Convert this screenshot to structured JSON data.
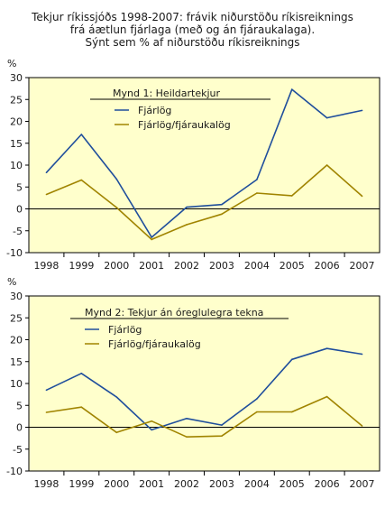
{
  "header": {
    "line1": "Tekjur ríkissjóðs 1998-2007: frávik niðurstöðu ríkisreiknings",
    "line2": "frá áætlun fjárlaga (með og án fjáraukalaga).",
    "line3": "Sýnt sem % af niðurstöðu ríkisreiknings"
  },
  "colors": {
    "plot_bg": "#ffffcc",
    "series1": "#1f4e9c",
    "series2": "#a08400",
    "axis": "#000000"
  },
  "chart_data": [
    {
      "type": "line",
      "title": "Mynd 1: Heildartekjur",
      "ylabel": "%",
      "ylim": [
        -10,
        30
      ],
      "yticks": [
        -10,
        -5,
        0,
        5,
        10,
        15,
        20,
        25,
        30
      ],
      "categories": [
        "1998",
        "1999",
        "2000",
        "2001",
        "2002",
        "2003",
        "2004",
        "2005",
        "2006",
        "2007"
      ],
      "series": [
        {
          "name": "Fjárlög",
          "values": [
            8.3,
            17.0,
            6.8,
            -6.5,
            0.4,
            1.0,
            6.7,
            27.3,
            20.8,
            22.5
          ]
        },
        {
          "name": "Fjárlög/fjáraukalög",
          "values": [
            3.3,
            6.6,
            0.3,
            -7.0,
            -3.6,
            -1.2,
            3.6,
            3.0,
            10.0,
            2.9
          ]
        }
      ],
      "legend": "top-center",
      "grid": false
    },
    {
      "type": "line",
      "title": "Mynd 2: Tekjur án óreglulegra tekna",
      "ylabel": "%",
      "ylim": [
        -10,
        30
      ],
      "yticks": [
        -10,
        -5,
        0,
        5,
        10,
        15,
        20,
        25,
        30
      ],
      "categories": [
        "1998",
        "1999",
        "2000",
        "2001",
        "2002",
        "2003",
        "2004",
        "2005",
        "2006",
        "2007"
      ],
      "series": [
        {
          "name": "Fjárlög",
          "values": [
            8.5,
            12.3,
            6.9,
            -0.6,
            2.0,
            0.5,
            6.5,
            15.5,
            18.0,
            16.7
          ]
        },
        {
          "name": "Fjárlög/fjáraukalög",
          "values": [
            3.4,
            4.6,
            -1.2,
            1.4,
            -2.2,
            -2.0,
            3.5,
            3.5,
            7.0,
            0.3
          ]
        }
      ],
      "legend": "top-left",
      "grid": false
    }
  ]
}
